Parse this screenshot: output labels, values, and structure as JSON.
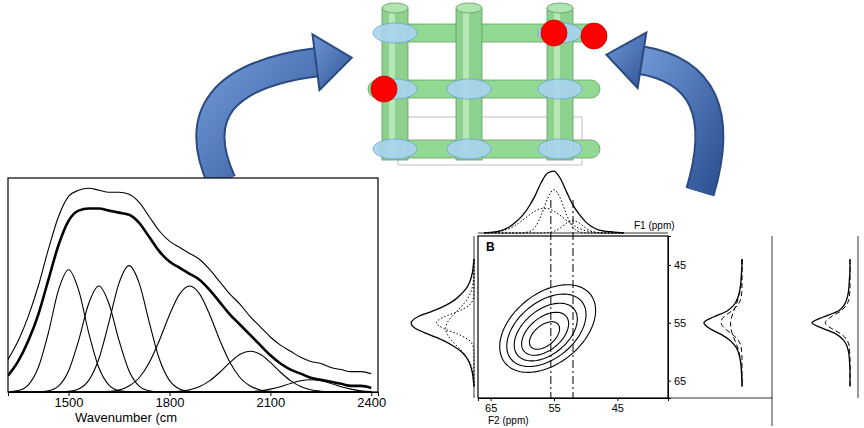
{
  "chart_data": [
    {
      "type": "line",
      "x_label": "Wavenumber (cm",
      "xlim": [
        1320,
        2420
      ],
      "xticks": [
        1500,
        1800,
        2100,
        2400
      ],
      "ylim": [
        0,
        1.05
      ],
      "tick_labels": "x",
      "x": [
        1320,
        1350,
        1380,
        1410,
        1440,
        1470,
        1500,
        1530,
        1560,
        1590,
        1620,
        1650,
        1680,
        1710,
        1740,
        1770,
        1800,
        1830,
        1860,
        1890,
        1920,
        1950,
        1980,
        2010,
        2040,
        2070,
        2100,
        2130,
        2160,
        2190,
        2220,
        2250,
        2280,
        2310,
        2340,
        2370,
        2400
      ],
      "series": [
        {
          "color": "#000000",
          "values": [
            0.16,
            0.25,
            0.37,
            0.52,
            0.7,
            0.86,
            0.96,
            0.99,
            1.0,
            0.99,
            0.98,
            0.98,
            0.97,
            0.93,
            0.86,
            0.79,
            0.74,
            0.71,
            0.68,
            0.65,
            0.6,
            0.54,
            0.48,
            0.43,
            0.37,
            0.32,
            0.27,
            0.23,
            0.2,
            0.17,
            0.15,
            0.14,
            0.12,
            0.11,
            0.1,
            0.1,
            0.09
          ]
        },
        {
          "color": "#000000",
          "values": [
            0.08,
            0.15,
            0.25,
            0.38,
            0.55,
            0.72,
            0.84,
            0.89,
            0.9,
            0.9,
            0.89,
            0.88,
            0.87,
            0.83,
            0.76,
            0.69,
            0.64,
            0.61,
            0.58,
            0.55,
            0.5,
            0.44,
            0.38,
            0.33,
            0.28,
            0.23,
            0.18,
            0.14,
            0.11,
            0.09,
            0.07,
            0.06,
            0.05,
            0.04,
            0.03,
            0.03,
            0.02
          ]
        },
        {
          "color": "#000000",
          "values": [
            0.001,
            0.007,
            0.034,
            0.12,
            0.29,
            0.5,
            0.6,
            0.5,
            0.29,
            0.12,
            0.034,
            0.007,
            0.001,
            0,
            0,
            0,
            0,
            0,
            0,
            0,
            0,
            0,
            0,
            0,
            0,
            0,
            0,
            0,
            0,
            0,
            0,
            0,
            0,
            0,
            0,
            0,
            0
          ]
        },
        {
          "color": "#000000",
          "values": [
            0,
            0,
            0,
            0.001,
            0.006,
            0.029,
            0.103,
            0.253,
            0.434,
            0.52,
            0.434,
            0.253,
            0.103,
            0.029,
            0.006,
            0.001,
            0,
            0,
            0,
            0,
            0,
            0,
            0,
            0,
            0,
            0,
            0,
            0,
            0,
            0,
            0,
            0,
            0,
            0,
            0,
            0,
            0
          ]
        },
        {
          "color": "#000000",
          "values": [
            0,
            0,
            0,
            0,
            0,
            0,
            0.003,
            0.015,
            0.057,
            0.162,
            0.342,
            0.534,
            0.62,
            0.534,
            0.342,
            0.162,
            0.057,
            0.015,
            0.003,
            0,
            0,
            0,
            0,
            0,
            0,
            0,
            0,
            0,
            0,
            0,
            0,
            0,
            0,
            0,
            0,
            0,
            0
          ]
        },
        {
          "color": "#000000",
          "values": [
            0,
            0,
            0,
            0,
            0,
            0,
            0,
            0,
            0,
            0,
            0.003,
            0.01,
            0.029,
            0.07,
            0.145,
            0.253,
            0.378,
            0.48,
            0.52,
            0.48,
            0.378,
            0.253,
            0.145,
            0.07,
            0.029,
            0.01,
            0.003,
            0,
            0,
            0,
            0,
            0,
            0,
            0,
            0,
            0,
            0
          ]
        },
        {
          "color": "#000000",
          "values": [
            0,
            0,
            0,
            0,
            0,
            0,
            0,
            0,
            0,
            0,
            0,
            0,
            0,
            0,
            0,
            0,
            0.001,
            0.004,
            0.011,
            0.027,
            0.056,
            0.097,
            0.145,
            0.185,
            0.2,
            0.185,
            0.145,
            0.097,
            0.056,
            0.027,
            0.011,
            0.004,
            0.001,
            0,
            0,
            0,
            0
          ]
        },
        {
          "color": "#000000",
          "values": [
            0,
            0,
            0,
            0,
            0,
            0,
            0,
            0,
            0,
            0,
            0,
            0,
            0,
            0,
            0,
            0,
            0,
            0,
            0,
            0,
            0,
            0,
            0,
            0,
            0.002,
            0.006,
            0.014,
            0.026,
            0.042,
            0.055,
            0.06,
            0.055,
            0.042,
            0.026,
            0.014,
            0.006,
            0.002
          ]
        }
      ]
    },
    {
      "type": "contour",
      "panel_label": "B",
      "x_label": "F2 (ppm)",
      "y_label": "F1 (ppm)",
      "xlim": [
        67,
        37
      ],
      "xticks": [
        65,
        55,
        45
      ],
      "ylim": [
        68,
        40
      ],
      "yticks": [
        45,
        55,
        65
      ],
      "contours": [
        {
          "x": 56,
          "y": 56,
          "major": 9,
          "minor": 5.8
        },
        {
          "x": 56.2,
          "y": 56.3,
          "major": 7.5,
          "minor": 4.7
        },
        {
          "x": 56.3,
          "y": 56.6,
          "major": 6,
          "minor": 3.7
        },
        {
          "x": 56.4,
          "y": 56.9,
          "major": 4.5,
          "minor": 2.7
        },
        {
          "x": 56.5,
          "y": 57.2,
          "major": 2.9,
          "minor": 1.7
        }
      ],
      "top_projection": {
        "ylim": [
          0,
          1.05
        ],
        "x": [
          66,
          65,
          64,
          63,
          62,
          61,
          60,
          59,
          58,
          57,
          56,
          55,
          54,
          53,
          52,
          51,
          50,
          49,
          48,
          47,
          46,
          45,
          44
        ],
        "series": [
          {
            "line_style": "solid",
            "values": [
              0,
              0.01,
              0.02,
              0.05,
              0.1,
              0.18,
              0.28,
              0.42,
              0.6,
              0.82,
              0.97,
              1.0,
              0.88,
              0.66,
              0.45,
              0.3,
              0.18,
              0.1,
              0.05,
              0.03,
              0.02,
              0.01,
              0
            ]
          },
          {
            "line_style": "dotted",
            "values": [
              0,
              0,
              0,
              0,
              0,
              0,
              0.003,
              0.02,
              0.09,
              0.29,
              0.56,
              0.7,
              0.56,
              0.29,
              0.09,
              0.02,
              0.003,
              0,
              0,
              0,
              0,
              0,
              0
            ]
          },
          {
            "line_style": "dotted",
            "values": [
              0.003,
              0.007,
              0.018,
              0.038,
              0.074,
              0.13,
              0.202,
              0.283,
              0.353,
              0.394,
              0.394,
              0.353,
              0.283,
              0.202,
              0.13,
              0.074,
              0.038,
              0.018,
              0.007,
              0.003,
              0,
              0,
              0
            ]
          },
          {
            "line_style": "dotted",
            "values": [
              0,
              0,
              0,
              0,
              0,
              0,
              0,
              0,
              0,
              0,
              0.006,
              0.027,
              0.082,
              0.16,
              0.2,
              0.16,
              0.082,
              0.027,
              0.006,
              0,
              0,
              0,
              0
            ]
          }
        ]
      },
      "left_projection": {
        "ylim": [
          0,
          1.05
        ],
        "x": [
          44,
          45,
          46,
          47,
          48,
          49,
          50,
          51,
          52,
          53,
          54,
          55,
          56,
          57,
          58,
          59,
          60,
          61,
          62,
          63,
          64,
          65,
          66
        ],
        "series": [
          {
            "line_style": "solid",
            "values": [
              0,
              0.01,
              0.02,
              0.04,
              0.07,
              0.12,
              0.2,
              0.3,
              0.45,
              0.66,
              0.9,
              1.0,
              0.93,
              0.72,
              0.5,
              0.33,
              0.2,
              0.12,
              0.07,
              0.04,
              0.02,
              0.01,
              0
            ]
          },
          {
            "line_style": "dotted",
            "values": [
              0,
              0,
              0,
              0,
              0,
              0,
              0.002,
              0.017,
              0.081,
              0.246,
              0.48,
              0.6,
              0.48,
              0.246,
              0.081,
              0.017,
              0.002,
              0,
              0,
              0,
              0,
              0,
              0
            ]
          },
          {
            "line_style": "dotted",
            "values": [
              0,
              0.001,
              0.002,
              0.005,
              0.013,
              0.03,
              0.061,
              0.112,
              0.185,
              0.273,
              0.36,
              0.426,
              0.45,
              0.426,
              0.36,
              0.273,
              0.185,
              0.112,
              0.061,
              0.03,
              0.013,
              0.005,
              0.002
            ]
          }
        ]
      },
      "slices": [
        {
          "f2": 55.5,
          "line_style": "dashdot",
          "ylim": [
            0,
            1.05
          ],
          "x": [
            44,
            45,
            46,
            47,
            48,
            49,
            50,
            51,
            52,
            53,
            54,
            55,
            56,
            57,
            58,
            59,
            60,
            61,
            62,
            63,
            64,
            65,
            66
          ],
          "series": [
            {
              "line_style": "solid",
              "values": [
                0,
                0,
                0.01,
                0.02,
                0.03,
                0.05,
                0.08,
                0.13,
                0.22,
                0.4,
                0.75,
                1.0,
                0.85,
                0.55,
                0.32,
                0.18,
                0.1,
                0.06,
                0.03,
                0.02,
                0.01,
                0,
                0
              ]
            },
            {
              "line_style": "dashed",
              "values": [
                0,
                0,
                0,
                0,
                0,
                0,
                0.01,
                0.04,
                0.12,
                0.28,
                0.48,
                0.55,
                0.45,
                0.25,
                0.1,
                0.03,
                0.01,
                0,
                0,
                0,
                0,
                0,
                0
              ]
            },
            {
              "line_style": "dashed",
              "values": [
                0,
                0,
                0.01,
                0.01,
                0.02,
                0.04,
                0.07,
                0.11,
                0.16,
                0.22,
                0.27,
                0.3,
                0.29,
                0.25,
                0.19,
                0.13,
                0.08,
                0.05,
                0.03,
                0.01,
                0.01,
                0,
                0
              ]
            }
          ]
        },
        {
          "f2": 52,
          "line_style": "dashdot",
          "ylim": [
            0,
            1.05
          ],
          "x": [
            44,
            45,
            46,
            47,
            48,
            49,
            50,
            51,
            52,
            53,
            54,
            55,
            56,
            57,
            58,
            59,
            60,
            61,
            62,
            63,
            64,
            65,
            66
          ],
          "series": [
            {
              "line_style": "solid",
              "values": [
                0,
                0,
                0,
                0.01,
                0.02,
                0.03,
                0.05,
                0.09,
                0.16,
                0.32,
                0.7,
                1.0,
                0.7,
                0.35,
                0.17,
                0.08,
                0.04,
                0.02,
                0.01,
                0,
                0,
                0,
                0
              ]
            },
            {
              "line_style": "dashed",
              "values": [
                0,
                0,
                0,
                0,
                0,
                0,
                0.01,
                0.03,
                0.1,
                0.25,
                0.5,
                0.65,
                0.48,
                0.22,
                0.08,
                0.02,
                0.01,
                0,
                0,
                0,
                0,
                0,
                0
              ]
            }
          ]
        }
      ]
    }
  ]
}
